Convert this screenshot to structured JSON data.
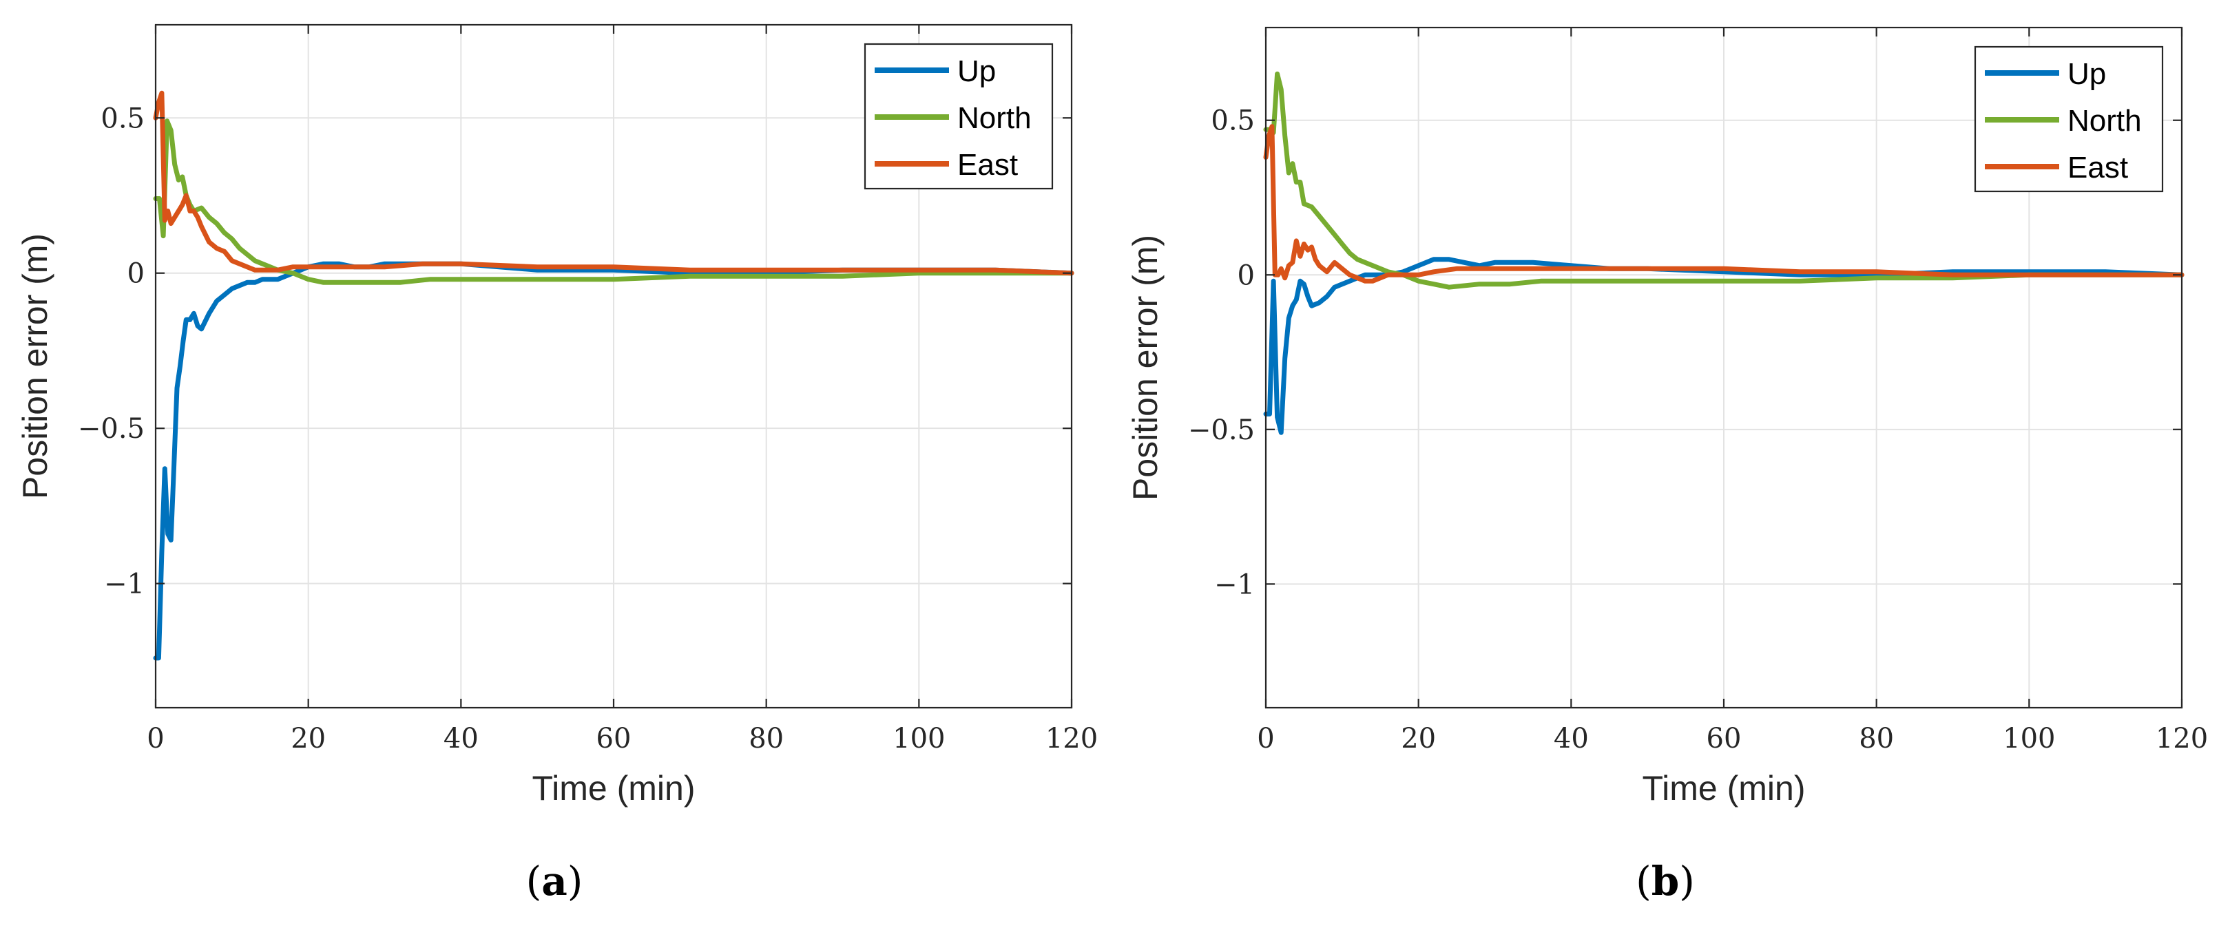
{
  "chart_data": [
    {
      "type": "line",
      "panel_label": "a",
      "title": "",
      "xlabel": "Time (min)",
      "ylabel": "Position error (m)",
      "xlim": [
        0,
        120
      ],
      "ylim": [
        -1.4,
        0.8
      ],
      "xticks": [
        0,
        20,
        40,
        60,
        80,
        100,
        120
      ],
      "xtick_labels": [
        "0",
        "20",
        "40",
        "60",
        "80",
        "100",
        "120"
      ],
      "yticks": [
        -1,
        -0.5,
        0,
        0.5
      ],
      "ytick_labels": [
        "−1",
        "−0.5",
        "0",
        "0.5"
      ],
      "grid": true,
      "legend_position": "top-right",
      "series": [
        {
          "name": "Up",
          "color": "#0072BD",
          "x": [
            0,
            0.4,
            0.8,
            1.2,
            1.6,
            2,
            2.4,
            2.8,
            3.2,
            3.6,
            4,
            4.5,
            5,
            5.5,
            6,
            7,
            8,
            9,
            10,
            11,
            12,
            13,
            14,
            15,
            16,
            17,
            18,
            19,
            20,
            22,
            24,
            26,
            28,
            30,
            32,
            35,
            40,
            45,
            50,
            60,
            70,
            80,
            90,
            100,
            110,
            120
          ],
          "y": [
            -1.24,
            -1.24,
            -0.9,
            -0.63,
            -0.84,
            -0.86,
            -0.62,
            -0.37,
            -0.3,
            -0.22,
            -0.15,
            -0.15,
            -0.13,
            -0.17,
            -0.18,
            -0.13,
            -0.09,
            -0.07,
            -0.05,
            -0.04,
            -0.03,
            -0.03,
            -0.02,
            -0.02,
            -0.02,
            -0.01,
            0.0,
            0.01,
            0.02,
            0.03,
            0.03,
            0.02,
            0.02,
            0.03,
            0.03,
            0.03,
            0.03,
            0.02,
            0.01,
            0.01,
            0.0,
            0.0,
            0.01,
            0.01,
            0.01,
            0.0
          ]
        },
        {
          "name": "North",
          "color": "#77AC30",
          "x": [
            0,
            0.5,
            1,
            1.5,
            2,
            2.5,
            3,
            3.5,
            4,
            4.5,
            5,
            6,
            7,
            8,
            9,
            10,
            11,
            12,
            13,
            14,
            15,
            16,
            18,
            20,
            22,
            24,
            28,
            32,
            36,
            40,
            50,
            60,
            70,
            80,
            90,
            100,
            110,
            120
          ],
          "y": [
            0.24,
            0.24,
            0.12,
            0.49,
            0.46,
            0.35,
            0.3,
            0.31,
            0.25,
            0.22,
            0.2,
            0.21,
            0.18,
            0.16,
            0.13,
            0.11,
            0.08,
            0.06,
            0.04,
            0.03,
            0.02,
            0.01,
            0.0,
            -0.02,
            -0.03,
            -0.03,
            -0.03,
            -0.03,
            -0.02,
            -0.02,
            -0.02,
            -0.02,
            -0.01,
            -0.01,
            -0.01,
            0.0,
            0.0,
            0.0
          ]
        },
        {
          "name": "East",
          "color": "#D95319",
          "x": [
            0,
            0.4,
            0.8,
            1.2,
            1.6,
            2,
            2.5,
            3,
            3.5,
            4,
            4.5,
            5,
            5.5,
            6,
            7,
            8,
            9,
            10,
            11,
            12,
            13,
            14,
            15,
            16,
            18,
            20,
            22,
            25,
            30,
            35,
            40,
            50,
            60,
            70,
            80,
            90,
            100,
            110,
            120
          ],
          "y": [
            0.5,
            0.55,
            0.58,
            0.17,
            0.2,
            0.16,
            0.18,
            0.2,
            0.22,
            0.25,
            0.2,
            0.2,
            0.18,
            0.15,
            0.1,
            0.08,
            0.07,
            0.04,
            0.03,
            0.02,
            0.01,
            0.01,
            0.01,
            0.01,
            0.02,
            0.02,
            0.02,
            0.02,
            0.02,
            0.03,
            0.03,
            0.02,
            0.02,
            0.01,
            0.01,
            0.01,
            0.01,
            0.01,
            0.0
          ]
        }
      ]
    },
    {
      "type": "line",
      "panel_label": "b",
      "title": "",
      "xlabel": "Time (min)",
      "ylabel": "Position error (m)",
      "xlim": [
        0,
        120
      ],
      "ylim": [
        -1.4,
        0.8
      ],
      "xticks": [
        0,
        20,
        40,
        60,
        80,
        100,
        120
      ],
      "xtick_labels": [
        "0",
        "20",
        "40",
        "60",
        "80",
        "100",
        "120"
      ],
      "yticks": [
        -1,
        -0.5,
        0,
        0.5
      ],
      "ytick_labels": [
        "−1",
        "−0.5",
        "0",
        "0.5"
      ],
      "grid": true,
      "legend_position": "top-right",
      "series": [
        {
          "name": "Up",
          "color": "#0072BD",
          "x": [
            0,
            0.5,
            1,
            1.5,
            2,
            2.5,
            3,
            3.5,
            4,
            4.5,
            5,
            5.5,
            6,
            7,
            8,
            9,
            10,
            11,
            12,
            13,
            14,
            15,
            16,
            18,
            20,
            22,
            24,
            26,
            28,
            30,
            35,
            40,
            45,
            50,
            60,
            70,
            80,
            90,
            100,
            110,
            120
          ],
          "y": [
            -0.45,
            -0.45,
            -0.02,
            -0.46,
            -0.51,
            -0.27,
            -0.14,
            -0.1,
            -0.08,
            -0.02,
            -0.03,
            -0.07,
            -0.1,
            -0.09,
            -0.07,
            -0.04,
            -0.03,
            -0.02,
            -0.01,
            0.0,
            0.0,
            0.0,
            0.0,
            0.01,
            0.03,
            0.05,
            0.05,
            0.04,
            0.03,
            0.04,
            0.04,
            0.03,
            0.02,
            0.02,
            0.01,
            0.0,
            0.0,
            0.01,
            0.01,
            0.01,
            0.0
          ]
        },
        {
          "name": "North",
          "color": "#77AC30",
          "x": [
            0,
            0.5,
            1,
            1.5,
            2,
            2.5,
            3,
            3.5,
            4,
            4.5,
            5,
            6,
            7,
            8,
            9,
            10,
            11,
            12,
            13,
            14,
            15,
            16,
            18,
            20,
            22,
            24,
            28,
            32,
            36,
            40,
            50,
            60,
            70,
            80,
            90,
            100,
            110,
            120
          ],
          "y": [
            0.47,
            0.47,
            0.46,
            0.65,
            0.6,
            0.45,
            0.33,
            0.36,
            0.3,
            0.3,
            0.23,
            0.22,
            0.19,
            0.16,
            0.13,
            0.1,
            0.07,
            0.05,
            0.04,
            0.03,
            0.02,
            0.01,
            0.0,
            -0.02,
            -0.03,
            -0.04,
            -0.03,
            -0.03,
            -0.02,
            -0.02,
            -0.02,
            -0.02,
            -0.02,
            -0.01,
            -0.01,
            0.0,
            0.0,
            0.0
          ]
        },
        {
          "name": "East",
          "color": "#D95319",
          "x": [
            0,
            0.4,
            0.8,
            1.2,
            1.6,
            2,
            2.5,
            3,
            3.5,
            4,
            4.5,
            5,
            5.5,
            6,
            6.5,
            7,
            8,
            9,
            10,
            11,
            12,
            13,
            14,
            15,
            16,
            18,
            20,
            22,
            25,
            30,
            35,
            40,
            50,
            60,
            70,
            80,
            90,
            100,
            110,
            120
          ],
          "y": [
            0.38,
            0.45,
            0.48,
            0.0,
            0.0,
            0.02,
            -0.01,
            0.03,
            0.04,
            0.11,
            0.06,
            0.1,
            0.08,
            0.09,
            0.05,
            0.03,
            0.01,
            0.04,
            0.02,
            0.0,
            -0.01,
            -0.02,
            -0.02,
            -0.01,
            0.0,
            0.0,
            0.0,
            0.01,
            0.02,
            0.02,
            0.02,
            0.02,
            0.02,
            0.02,
            0.01,
            0.01,
            0.0,
            0.0,
            0.0,
            0.0
          ]
        }
      ]
    }
  ]
}
